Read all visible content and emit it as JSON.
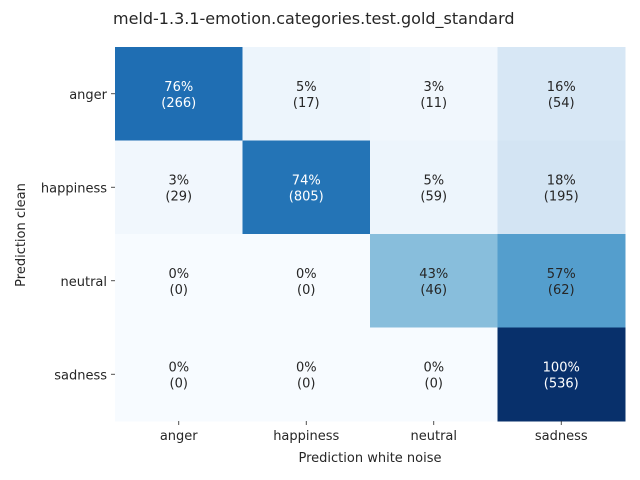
{
  "chart_data": {
    "type": "heatmap",
    "title": "meld-1.3.1-emotion.categories.test.gold_standard",
    "xlabel": "Prediction white noise",
    "ylabel": "Prediction clean",
    "x_categories": [
      "anger",
      "happiness",
      "neutral",
      "sadness"
    ],
    "y_categories": [
      "anger",
      "happiness",
      "neutral",
      "sadness"
    ],
    "percent": [
      [
        76,
        5,
        3,
        16
      ],
      [
        3,
        74,
        5,
        18
      ],
      [
        0,
        0,
        43,
        57
      ],
      [
        0,
        0,
        0,
        100
      ]
    ],
    "counts": [
      [
        266,
        17,
        11,
        54
      ],
      [
        29,
        805,
        59,
        195
      ],
      [
        0,
        0,
        46,
        62
      ],
      [
        0,
        0,
        0,
        536
      ]
    ],
    "cell_labels": [
      [
        [
          "76%",
          "(266)"
        ],
        [
          "5%",
          "(17)"
        ],
        [
          "3%",
          "(11)"
        ],
        [
          "16%",
          "(54)"
        ]
      ],
      [
        [
          "3%",
          "(29)"
        ],
        [
          "74%",
          "(805)"
        ],
        [
          "5%",
          "(59)"
        ],
        [
          "18%",
          "(195)"
        ]
      ],
      [
        [
          "0%",
          "(0)"
        ],
        [
          "0%",
          "(0)"
        ],
        [
          "43%",
          "(46)"
        ],
        [
          "57%",
          "(62)"
        ]
      ],
      [
        [
          "0%",
          "(0)"
        ],
        [
          "0%",
          "(0)"
        ],
        [
          "0%",
          "(0)"
        ],
        [
          "100%",
          "(536)"
        ]
      ]
    ],
    "colormap": "Blues",
    "color_range": [
      0,
      100
    ],
    "colorbar": false,
    "grid": false
  }
}
